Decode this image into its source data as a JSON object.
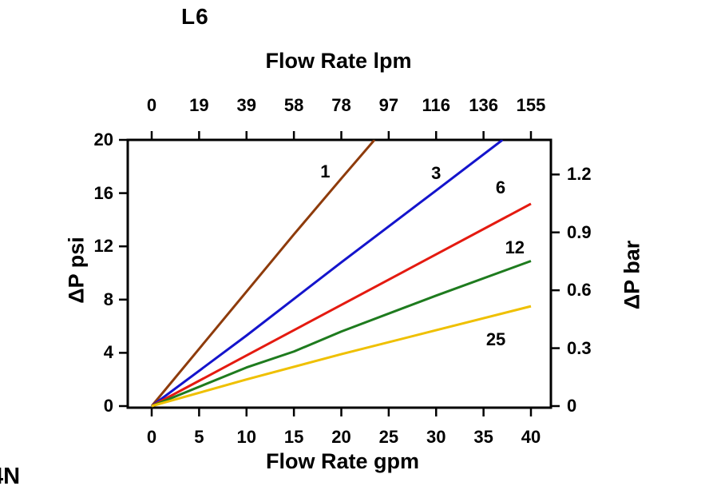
{
  "page": {
    "corner_text": "4N"
  },
  "chart_data": {
    "type": "line",
    "title": "L6",
    "axes": {
      "top": {
        "label": "Flow Rate lpm",
        "ticks": [
          "0",
          "19",
          "39",
          "58",
          "78",
          "97",
          "116",
          "136",
          "155"
        ]
      },
      "bottom": {
        "label": "Flow Rate gpm",
        "ticks": [
          0,
          5,
          10,
          15,
          20,
          25,
          30,
          35,
          40
        ],
        "range": [
          0,
          40
        ]
      },
      "left": {
        "label": "ΔP psi",
        "ticks": [
          0,
          4,
          8,
          12,
          16,
          20
        ],
        "range": [
          0,
          20
        ]
      },
      "right": {
        "label": "ΔP bar",
        "ticks": [
          0,
          0.3,
          0.6,
          0.9,
          1.2
        ],
        "psi_per_bar": 14.5
      }
    },
    "grid": false,
    "legend": "inline-labels",
    "series": [
      {
        "name": "1",
        "color": "#8e3b0b",
        "points": [
          [
            0,
            0
          ],
          [
            5,
            4.3
          ],
          [
            10,
            8.6
          ],
          [
            15,
            12.9
          ],
          [
            20,
            17.1
          ],
          [
            23.5,
            20
          ]
        ],
        "label_pos": [
          18.3,
          17.6
        ]
      },
      {
        "name": "3",
        "color": "#1414cc",
        "points": [
          [
            0,
            0
          ],
          [
            10,
            5.3
          ],
          [
            20,
            10.8
          ],
          [
            30,
            16.2
          ],
          [
            37,
            20
          ]
        ],
        "label_pos": [
          30.0,
          17.5
        ]
      },
      {
        "name": "6",
        "color": "#e41a10",
        "points": [
          [
            0,
            0
          ],
          [
            10,
            3.8
          ],
          [
            20,
            7.6
          ],
          [
            30,
            11.4
          ],
          [
            40,
            15.2
          ]
        ],
        "label_pos": [
          36.8,
          16.4
        ]
      },
      {
        "name": "12",
        "color": "#1e7b1e",
        "points": [
          [
            0,
            0
          ],
          [
            10,
            2.9
          ],
          [
            15,
            4.1
          ],
          [
            20,
            5.6
          ],
          [
            30,
            8.3
          ],
          [
            40,
            10.9
          ]
        ],
        "label_pos": [
          38.3,
          11.9
        ]
      },
      {
        "name": "25",
        "color": "#efc000",
        "points": [
          [
            0,
            0
          ],
          [
            10,
            2.0
          ],
          [
            20,
            3.9
          ],
          [
            30,
            5.7
          ],
          [
            40,
            7.5
          ]
        ],
        "label_pos": [
          36.3,
          5.0
        ]
      }
    ]
  }
}
